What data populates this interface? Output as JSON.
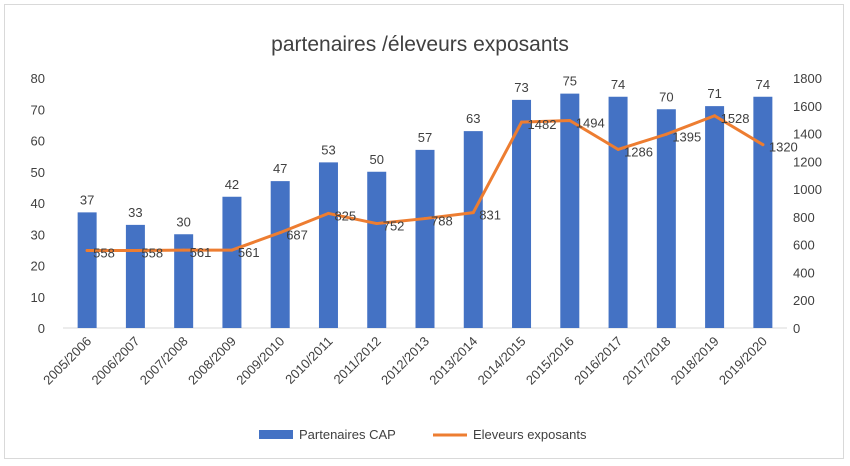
{
  "chart_data": {
    "type": "bar+line",
    "title": "partenaires  /éleveurs exposants",
    "categories": [
      "2005/2006",
      "2006/2007",
      "2007/2008",
      "2008/2009",
      "2009/2010",
      "2010/2011",
      "2011/2012",
      "2012/2013",
      "2013/2014",
      "2014/2015",
      "2015/2016",
      "2016/2017",
      "2017/2018",
      "2018/2019",
      "2019/2020"
    ],
    "series": [
      {
        "name": "Partenaires CAP",
        "type": "bar",
        "axis": "left",
        "color": "#4472c4",
        "values": [
          37,
          33,
          30,
          42,
          47,
          53,
          50,
          57,
          63,
          73,
          75,
          74,
          70,
          71,
          74
        ]
      },
      {
        "name": "Eleveurs exposants",
        "type": "line",
        "axis": "right",
        "color": "#ed7d31",
        "values": [
          558,
          558,
          561,
          561,
          687,
          825,
          752,
          788,
          831,
          1482,
          1494,
          1286,
          1395,
          1528,
          1320
        ]
      }
    ],
    "y_left": {
      "min": 0,
      "max": 80,
      "ticks": [
        "0",
        "10",
        "20",
        "30",
        "40",
        "50",
        "60",
        "70",
        "80"
      ]
    },
    "y_right": {
      "min": 0,
      "max": 1800,
      "ticks": [
        "0",
        "200",
        "400",
        "600",
        "800",
        "1000",
        "1200",
        "1400",
        "1600",
        "1800"
      ]
    },
    "gridlines": false,
    "legend_position": "bottom"
  }
}
